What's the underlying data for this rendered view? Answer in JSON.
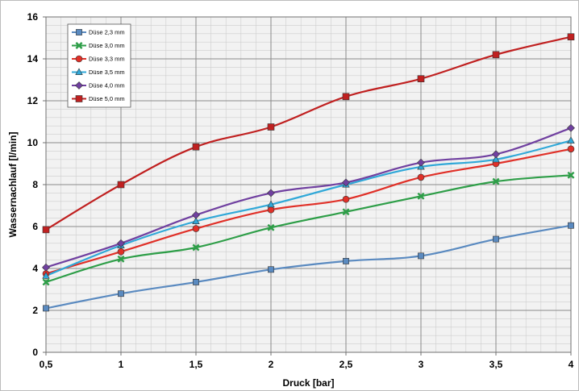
{
  "chart_data": {
    "type": "line",
    "title": "",
    "xlabel": "Druck [bar]",
    "ylabel": "Wassernachlauf [l/min]",
    "x": [
      0.5,
      1,
      1.5,
      2,
      2.5,
      3,
      3.5,
      4
    ],
    "x_tick_labels": [
      "0,5",
      "1",
      "1,5",
      "2",
      "2,5",
      "3",
      "3,5",
      "4"
    ],
    "xlim": [
      0.5,
      4
    ],
    "ylim": [
      0,
      16
    ],
    "y_ticks": [
      0,
      2,
      4,
      6,
      8,
      10,
      12,
      14,
      16
    ],
    "grid": true,
    "legend_position": "top-left",
    "series": [
      {
        "name": "Düse 2,3 mm",
        "color": "#5a8ac0",
        "marker": "square-small",
        "values": [
          2.1,
          2.8,
          3.35,
          3.95,
          4.35,
          4.6,
          5.4,
          6.05
        ]
      },
      {
        "name": "Düse 3,0 mm",
        "color": "#2e9e48",
        "marker": "x",
        "values": [
          3.35,
          4.45,
          5.0,
          5.95,
          6.7,
          7.45,
          8.15,
          8.45
        ]
      },
      {
        "name": "Düse 3,3 mm",
        "color": "#e03028",
        "marker": "circle",
        "values": [
          3.75,
          4.8,
          5.9,
          6.8,
          7.3,
          8.35,
          9.0,
          9.7
        ]
      },
      {
        "name": "Düse 3,5 mm",
        "color": "#30a8d8",
        "marker": "triangle",
        "values": [
          3.65,
          5.1,
          6.25,
          7.05,
          8.0,
          8.85,
          9.2,
          10.1
        ]
      },
      {
        "name": "Düse 4,0 mm",
        "color": "#7040a0",
        "marker": "diamond",
        "values": [
          4.05,
          5.2,
          6.55,
          7.6,
          8.1,
          9.05,
          9.45,
          10.7
        ]
      },
      {
        "name": "Düse 5,0 mm",
        "color": "#c02020",
        "marker": "square",
        "values": [
          5.85,
          8.0,
          9.8,
          10.75,
          12.2,
          13.05,
          14.2,
          15.05
        ]
      }
    ]
  }
}
